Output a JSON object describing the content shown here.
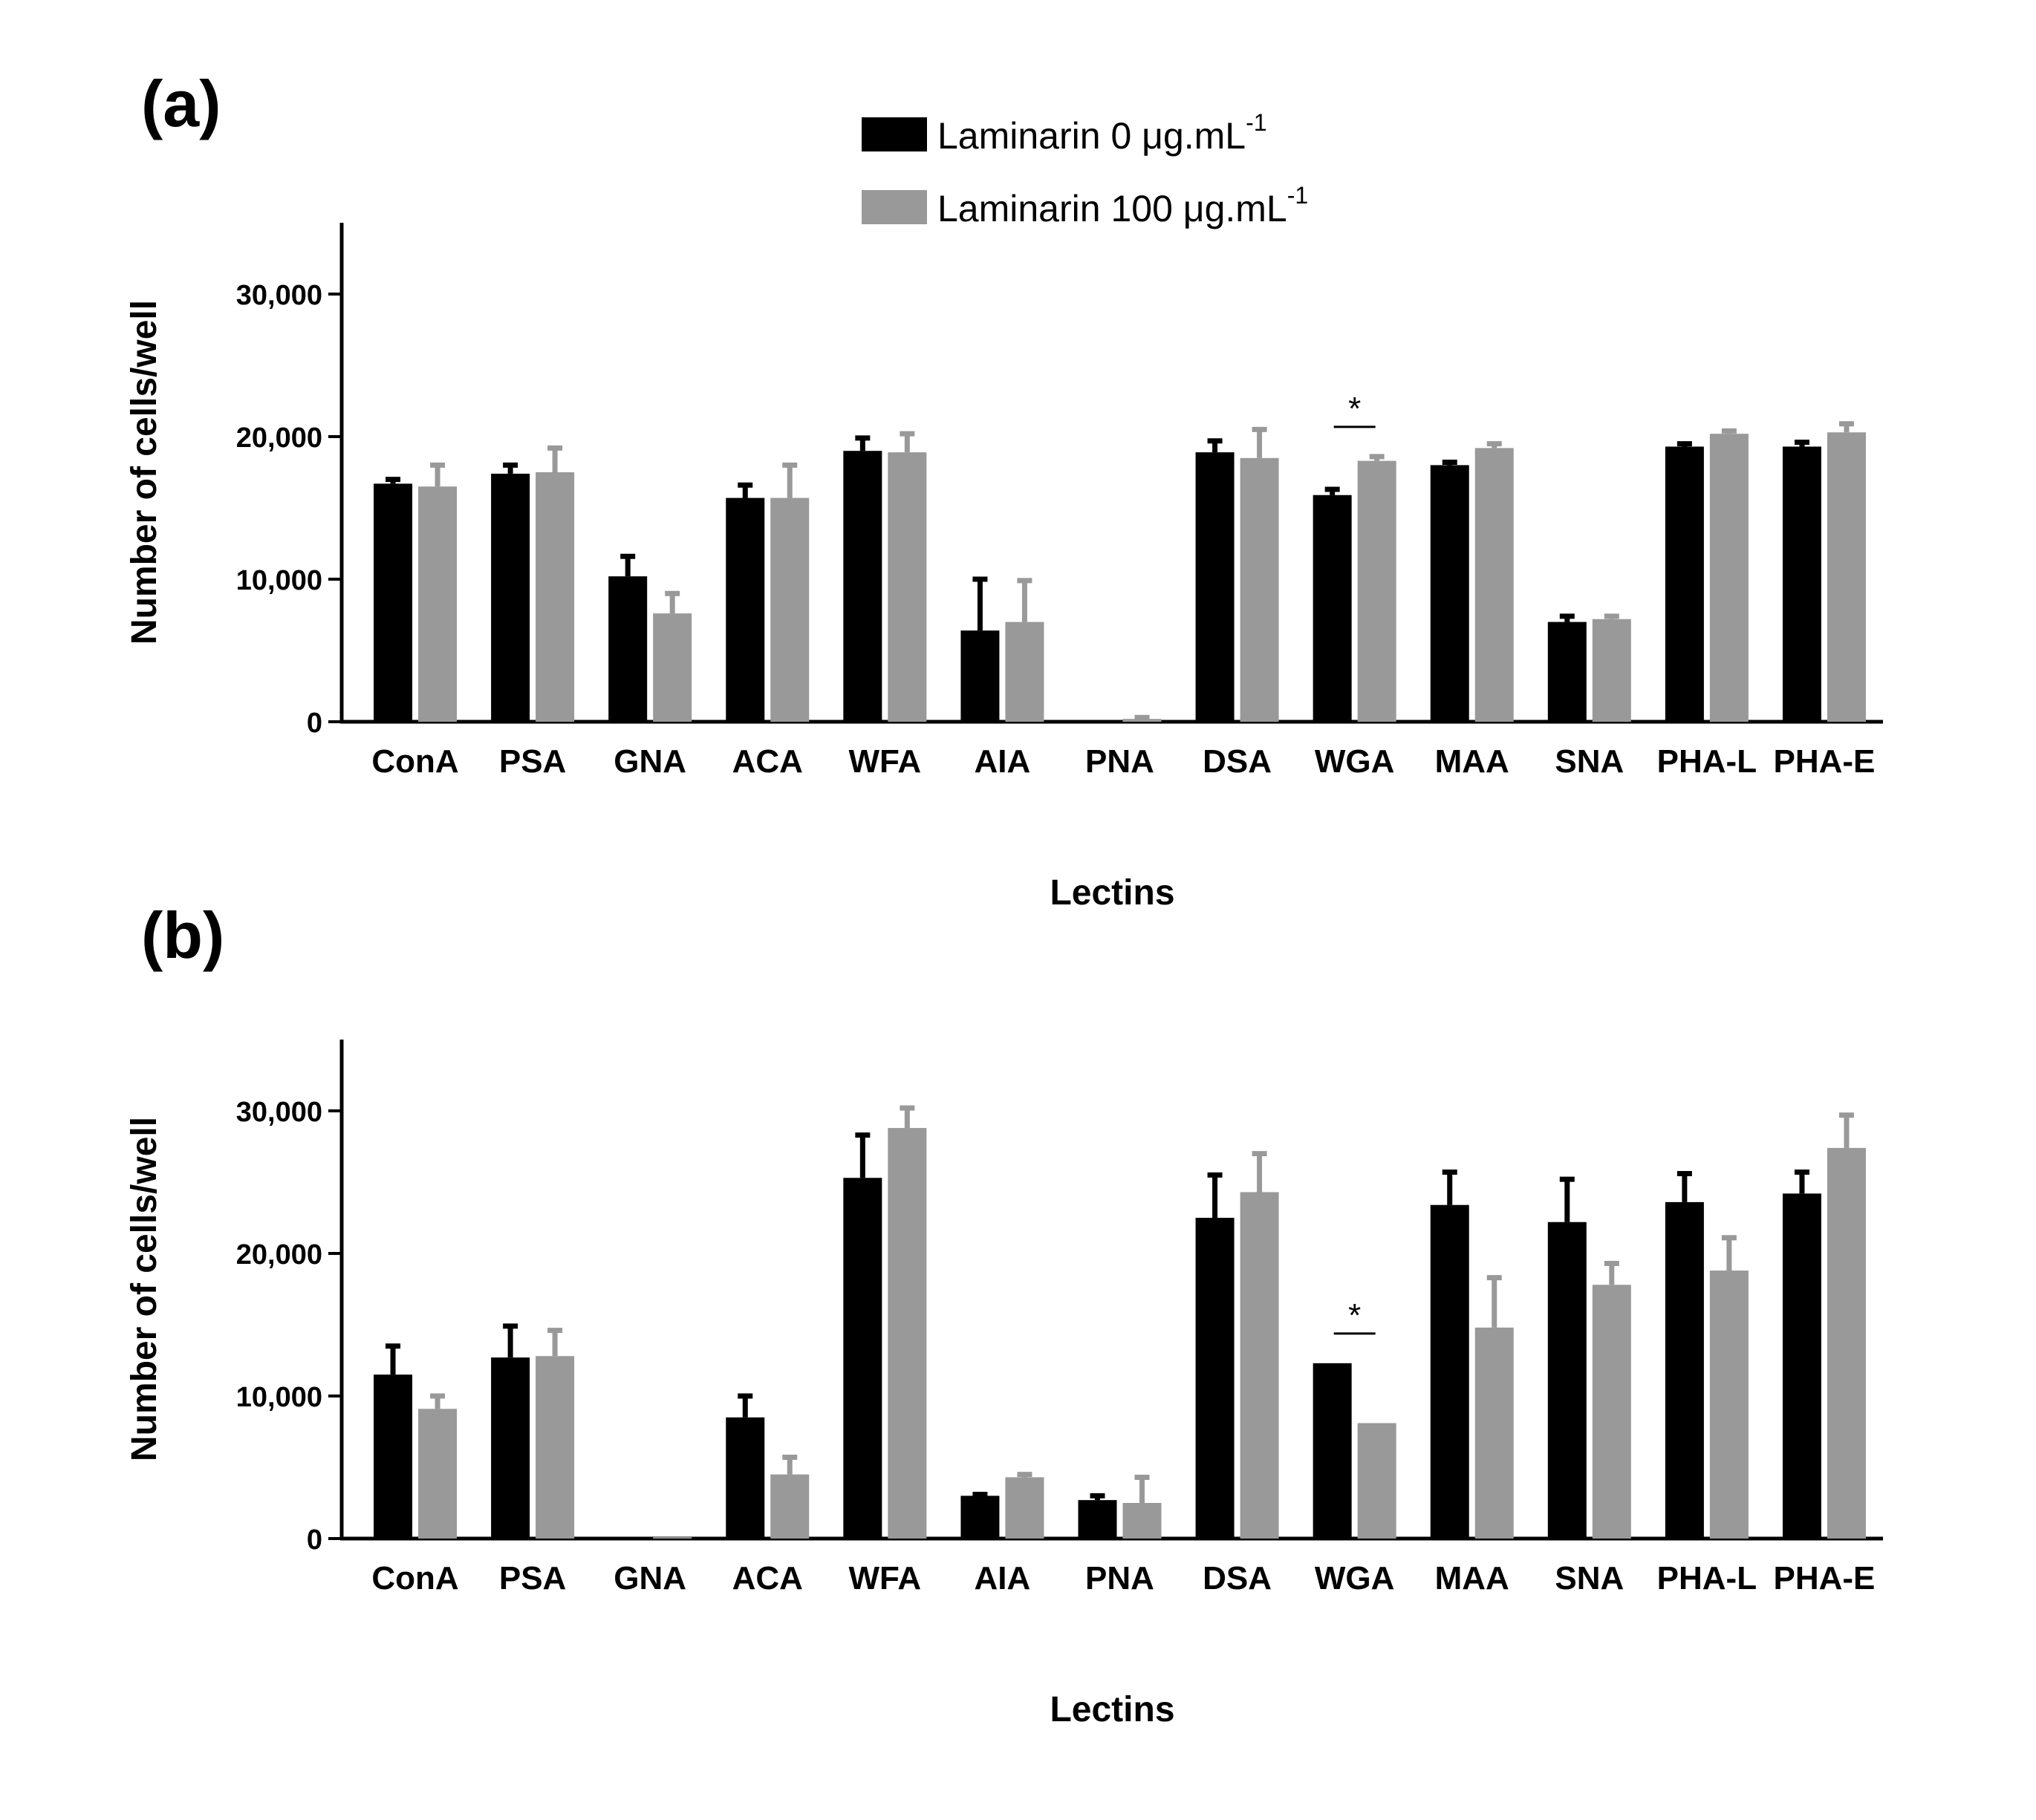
{
  "legend": {
    "series0_label": "Laminarin 0 μg.mL",
    "series0_sup": "-1",
    "series1_label": "Laminarin 100 μg.mL",
    "series1_sup": "-1"
  },
  "colors": {
    "series0": "#000000",
    "series1": "#999999",
    "axis": "#000000"
  },
  "chart_data": [
    {
      "type": "bar",
      "panel_label": "(a)",
      "xlabel": "Lectins",
      "ylabel": "Number of cells/well",
      "ylim": [
        0,
        35000
      ],
      "yticks": [
        0,
        10000,
        20000,
        30000
      ],
      "ytick_labels": [
        "0",
        "10,000",
        "20,000",
        "30,000"
      ],
      "categories": [
        "ConA",
        "PSA",
        "GNA",
        "ACA",
        "WFA",
        "AIA",
        "PNA",
        "DSA",
        "WGA",
        "MAA",
        "SNA",
        "PHA-L",
        "PHA-E"
      ],
      "series": [
        {
          "name": "Laminarin 0 μg.mL-1",
          "values": [
            16700,
            17400,
            10200,
            15700,
            19000,
            6400,
            0,
            18900,
            15900,
            18000,
            7000,
            19300,
            19300
          ],
          "errors": [
            300,
            600,
            1400,
            900,
            900,
            3600,
            0,
            800,
            400,
            200,
            400,
            200,
            300
          ]
        },
        {
          "name": "Laminarin 100 μg.mL-1",
          "values": [
            16500,
            17500,
            7600,
            15700,
            18900,
            7000,
            200,
            18500,
            18300,
            19200,
            7200,
            20200,
            20300
          ],
          "errors": [
            1500,
            1700,
            1400,
            2300,
            1300,
            2900,
            100,
            2000,
            300,
            300,
            200,
            200,
            600
          ]
        }
      ],
      "significance": [
        {
          "category": "WGA",
          "label": "*"
        }
      ]
    },
    {
      "type": "bar",
      "panel_label": "(b)",
      "xlabel": "Lectins",
      "ylabel": "Number of cells/well",
      "ylim": [
        0,
        35000
      ],
      "yticks": [
        0,
        10000,
        20000,
        30000
      ],
      "ytick_labels": [
        "0",
        "10,000",
        "20,000",
        "30,000"
      ],
      "categories": [
        "ConA",
        "PSA",
        "GNA",
        "ACA",
        "WFA",
        "AIA",
        "PNA",
        "DSA",
        "WGA",
        "MAA",
        "SNA",
        "PHA-L",
        "PHA-E"
      ],
      "series": [
        {
          "name": "Laminarin 0 μg.mL-1",
          "values": [
            11500,
            12700,
            0,
            8500,
            25300,
            3000,
            2700,
            22500,
            12300,
            23400,
            22200,
            23600,
            24200
          ],
          "errors": [
            2000,
            2200,
            0,
            1500,
            3000,
            100,
            300,
            3000,
            0,
            2300,
            3000,
            2000,
            1500
          ]
        },
        {
          "name": "Laminarin 100 μg.mL-1",
          "values": [
            9100,
            12800,
            100,
            4500,
            28800,
            4300,
            2500,
            24300,
            8100,
            14800,
            17800,
            18800,
            27400
          ],
          "errors": [
            900,
            1800,
            0,
            1200,
            1400,
            200,
            1800,
            2700,
            0,
            3500,
            1500,
            2300,
            2300
          ]
        }
      ],
      "significance": [
        {
          "category": "WGA",
          "label": "*"
        }
      ]
    }
  ]
}
